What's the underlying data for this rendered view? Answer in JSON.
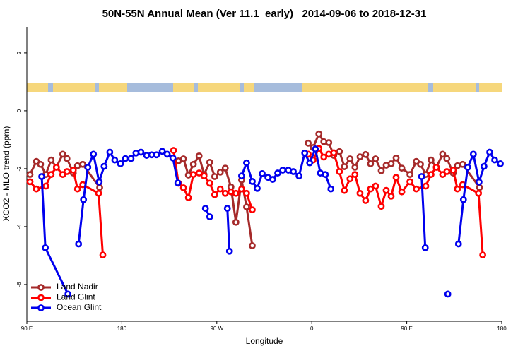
{
  "chart_data": {
    "type": "line",
    "title": "50N-55N Annual Mean (Ver 11.1_early)   2014-09-06 to 2018-12-31",
    "xlabel": "Longitude",
    "ylabel": "XCO2 - MLO trend (ppm)",
    "xlim": [
      90,
      540
    ],
    "ylim": [
      -7.27,
      2.9
    ],
    "xticks": [
      {
        "value": 90,
        "label": "90 E"
      },
      {
        "value": 180,
        "label": "180"
      },
      {
        "value": 270,
        "label": "90 W"
      },
      {
        "value": 360,
        "label": "0"
      },
      {
        "value": 450,
        "label": "90 E"
      },
      {
        "value": 540,
        "label": "180"
      }
    ],
    "yticks": [
      2,
      0,
      -2,
      -4,
      -6
    ],
    "legend": "bottom-left",
    "series": [
      {
        "name": "Land Nadir",
        "color": "#a52a2a",
        "x": [
          93,
          99,
          103,
          108,
          113,
          118,
          124,
          128,
          134,
          138,
          143,
          159,
          null,
          233.7,
          238.4,
          243.1,
          247.8,
          253.2,
          257.9,
          263.3,
          268,
          273.3,
          278,
          283.4,
          288.1,
          293.5,
          298.2,
          303.6,
          null,
          356.6,
          361.3,
          366.7,
          371.4,
          376.1,
          380.8,
          386.2,
          390.9,
          396.2,
          400.9,
          405.7,
          411,
          415.7,
          420.4,
          425.8,
          430.5,
          435.2,
          439.9,
          445.3,
          453,
          459,
          463,
          468,
          473,
          478,
          484,
          488,
          494,
          498,
          503,
          519
        ],
        "values": [
          -2.2,
          -1.75,
          -1.85,
          -2.2,
          -1.7,
          -1.95,
          -1.5,
          -1.65,
          -2.15,
          -1.9,
          -1.85,
          -2.65,
          null,
          -1.73,
          -1.66,
          -2.22,
          -1.85,
          -1.56,
          -2.2,
          -1.78,
          -2.27,
          -2.12,
          -1.98,
          -2.63,
          -3.85,
          -2.39,
          -3.32,
          -4.66,
          null,
          -1.12,
          -1.27,
          -0.8,
          -1.07,
          -1.1,
          -1.54,
          -1.41,
          -1.93,
          -1.66,
          -1.95,
          -1.59,
          -1.51,
          -1.83,
          -1.66,
          -2.07,
          -1.88,
          -1.83,
          -1.63,
          -1.98,
          -2.2,
          -1.75,
          -1.85,
          -2.2,
          -1.7,
          -1.95,
          -1.5,
          -1.65,
          -2.15,
          -1.9,
          -1.85,
          -2.65
        ]
      },
      {
        "name": "Land Glint",
        "color": "#ff0000",
        "x": [
          93,
          99,
          108,
          113,
          118,
          124,
          128,
          134,
          138,
          143,
          158,
          162,
          null,
          229,
          233.7,
          238.4,
          243.1,
          247.8,
          253.2,
          257.9,
          263.3,
          268,
          273.3,
          278,
          283.4,
          288.1,
          293.5,
          298.2,
          303.6,
          null,
          356.6,
          361.3,
          366.7,
          371.4,
          376.1,
          380.8,
          386.2,
          390.9,
          396.2,
          400.9,
          405.7,
          411,
          415.7,
          420.4,
          425.8,
          430.5,
          435.2,
          439.9,
          445.3,
          453,
          459,
          468,
          473,
          478,
          484,
          488,
          494,
          498,
          503,
          518,
          522
        ],
        "values": [
          -2.45,
          -2.7,
          -2.6,
          -2.2,
          -1.95,
          -2.2,
          -2.1,
          -2.05,
          -2.7,
          -2.55,
          -2.85,
          -4.98,
          null,
          -1.37,
          -2.5,
          -2.66,
          -3,
          -2.2,
          -2.15,
          -2.25,
          -2.5,
          -2.9,
          -2.7,
          -2.85,
          -2.8,
          -2.85,
          -2.7,
          -2.85,
          -3.42,
          null,
          -1.5,
          -1.7,
          -1.3,
          -1.6,
          -1.5,
          -1.45,
          -2.1,
          -2.75,
          -2.35,
          -2.2,
          -2.85,
          -3.1,
          -2.7,
          -2.6,
          -3.3,
          -2.75,
          -2.95,
          -2.3,
          -2.8,
          -2.45,
          -2.7,
          -2.6,
          -2.2,
          -1.95,
          -2.2,
          -2.1,
          -2.05,
          -2.7,
          -2.55,
          -2.85,
          -4.98
        ]
      },
      {
        "name": "Ocean Glint",
        "color": "#0000ee",
        "x": [
          104.1,
          107.5,
          128.9,
          null,
          139,
          143.7,
          147.8,
          153.1,
          158.5,
          163.2,
          168.6,
          173.3,
          178.7,
          183.4,
          188.7,
          193.4,
          198.1,
          203.5,
          208.2,
          212.9,
          218.3,
          223,
          228.4,
          233.1,
          null,
          259.2,
          263.3,
          null,
          280,
          282,
          null,
          293.5,
          298.2,
          303.6,
          308.3,
          313,
          318.4,
          323,
          327.7,
          332.5,
          337.8,
          342.5,
          347.9,
          353.3,
          358,
          363.4,
          368.1,
          372.8,
          378.1,
          null,
          464.1,
          467.5,
          null,
          488.9,
          null,
          499,
          503.7,
          507.8,
          513.1,
          518.5,
          523.2,
          528.6,
          533.3,
          538.7
        ],
        "values": [
          -2.27,
          -4.73,
          -6.33,
          null,
          -4.6,
          -3.07,
          -1.95,
          -1.5,
          -2.46,
          -1.92,
          -1.43,
          -1.7,
          -1.83,
          -1.65,
          -1.65,
          -1.46,
          -1.43,
          -1.54,
          -1.52,
          -1.52,
          -1.4,
          -1.5,
          -1.63,
          -2.49,
          null,
          -3.37,
          -3.66,
          null,
          -3.37,
          -4.85,
          null,
          -2.25,
          -1.8,
          -2.44,
          -2.68,
          -2.17,
          -2.3,
          -2.37,
          -2.15,
          -2.05,
          -2.05,
          -2.1,
          -2.25,
          -1.46,
          -1.8,
          -1.32,
          -2.15,
          -2.2,
          -2.7,
          null,
          -2.27,
          -4.73,
          null,
          -6.33,
          null,
          -4.6,
          -3.07,
          -1.95,
          -1.5,
          -2.46,
          -1.92,
          -1.43,
          -1.7,
          -1.83
        ]
      }
    ]
  }
}
